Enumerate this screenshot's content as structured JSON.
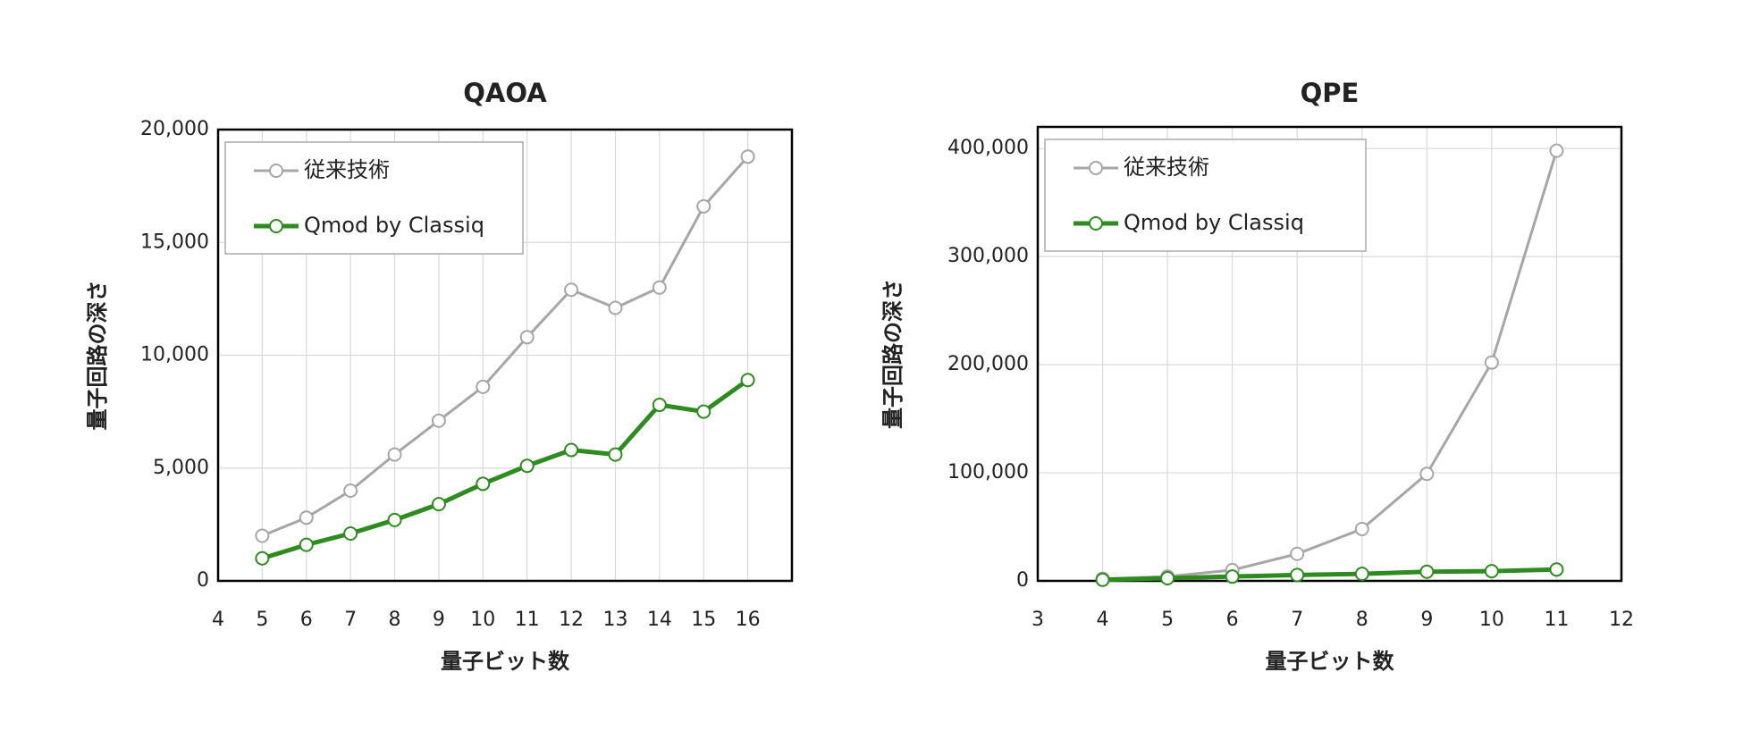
{
  "chart_data": [
    {
      "type": "line",
      "title": "QAOA",
      "x_label": "量子ビット数",
      "y_label": "量子回路の深さ",
      "x": [
        5,
        6,
        7,
        8,
        9,
        10,
        11,
        12,
        13,
        14,
        15,
        16
      ],
      "series": [
        {
          "name": "従来技術",
          "color": "#a6a6a6",
          "values": [
            2000,
            2800,
            4000,
            5600,
            7100,
            8600,
            10800,
            12900,
            12100,
            13000,
            16600,
            18800
          ]
        },
        {
          "name": "Qmod by Classiq",
          "color": "#2e8b1f",
          "values": [
            1000,
            1600,
            2100,
            2700,
            3400,
            4300,
            5100,
            5800,
            5600,
            7800,
            7500,
            8900
          ]
        }
      ],
      "xlim": [
        4,
        17
      ],
      "ylim": [
        0,
        20000
      ],
      "xticks": [
        4,
        5,
        6,
        7,
        8,
        9,
        10,
        11,
        12,
        13,
        14,
        15,
        16
      ],
      "yticks": [
        0,
        {
          "value": 5000,
          "label": "5,000"
        },
        {
          "value": 10000,
          "label": "10,000"
        },
        {
          "value": 15000,
          "label": "15,000"
        },
        {
          "value": 20000,
          "label": "20,000"
        }
      ],
      "grid": true,
      "legend": "upper-left"
    },
    {
      "type": "line",
      "title": "QPE",
      "x_label": "量子ビット数",
      "y_label": "量子回路の深さ",
      "x": [
        4,
        5,
        6,
        7,
        8,
        9,
        10,
        11
      ],
      "series": [
        {
          "name": "従来技術",
          "color": "#a6a6a6",
          "values": [
            2000,
            4000,
            10000,
            25000,
            48000,
            99000,
            202000,
            398000
          ]
        },
        {
          "name": "Qmod by Classiq",
          "color": "#2e8b1f",
          "values": [
            1000,
            2500,
            4000,
            5500,
            6500,
            8500,
            9000,
            10500
          ]
        }
      ],
      "xlim": [
        3,
        12
      ],
      "ylim": [
        0,
        420000
      ],
      "xticks": [
        3,
        4,
        5,
        6,
        7,
        8,
        9,
        10,
        11,
        12
      ],
      "yticks": [
        0,
        {
          "value": 100000,
          "label": "100,000"
        },
        {
          "value": 200000,
          "label": "200,000"
        },
        {
          "value": 300000,
          "label": "300,000"
        },
        {
          "value": 400000,
          "label": "400,000"
        }
      ],
      "grid": true,
      "legend": "upper-left"
    }
  ]
}
